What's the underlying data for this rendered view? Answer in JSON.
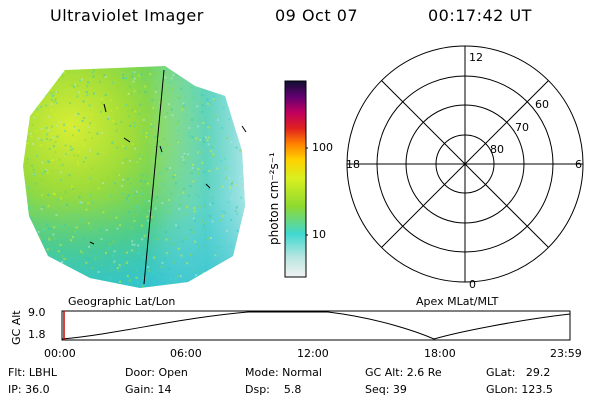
{
  "header": {
    "title": "Ultraviolet Imager",
    "date": "09 Oct 07",
    "time": "00:17:42 UT"
  },
  "colorbar": {
    "unit_label": "photon cm⁻²s⁻¹",
    "tick_labels": [
      "100",
      "10"
    ]
  },
  "polar_plot": {
    "mlt_labels": {
      "top": "12",
      "left": "18",
      "right": "6",
      "bottom": "0"
    },
    "lat_labels": [
      "60",
      "70",
      "80"
    ]
  },
  "panel_labels": {
    "left": "Geographic Lat/Lon",
    "right": "Apex MLat/MLT"
  },
  "altitude_plot": {
    "axis_title": "GC Alt",
    "y_ticks": [
      "9.0",
      "1.8"
    ],
    "x_ticks": [
      "00:00",
      "06:00",
      "12:00",
      "18:00",
      "23:59"
    ]
  },
  "footer": {
    "flt": "Flt: LBHL",
    "ip": "IP: 36.0",
    "door": "Door: Open",
    "gain": "Gain: 14",
    "mode": "Mode: Normal",
    "dsp": "Dsp:    5.8",
    "gc_alt": "GC Alt: 2.6 Re",
    "seq": "Seq: 39",
    "glat": "GLat:   29.2",
    "glon": "GLon: 123.5"
  },
  "colors": {
    "colorbar_stops": [
      "#f2f2f2",
      "#b9e6e0",
      "#40d8d0",
      "#8ed930",
      "#d8f020",
      "#ffd000",
      "#ff8000",
      "#e02020",
      "#c00060",
      "#600070",
      "#101030"
    ],
    "cursor": "#cc0000"
  }
}
